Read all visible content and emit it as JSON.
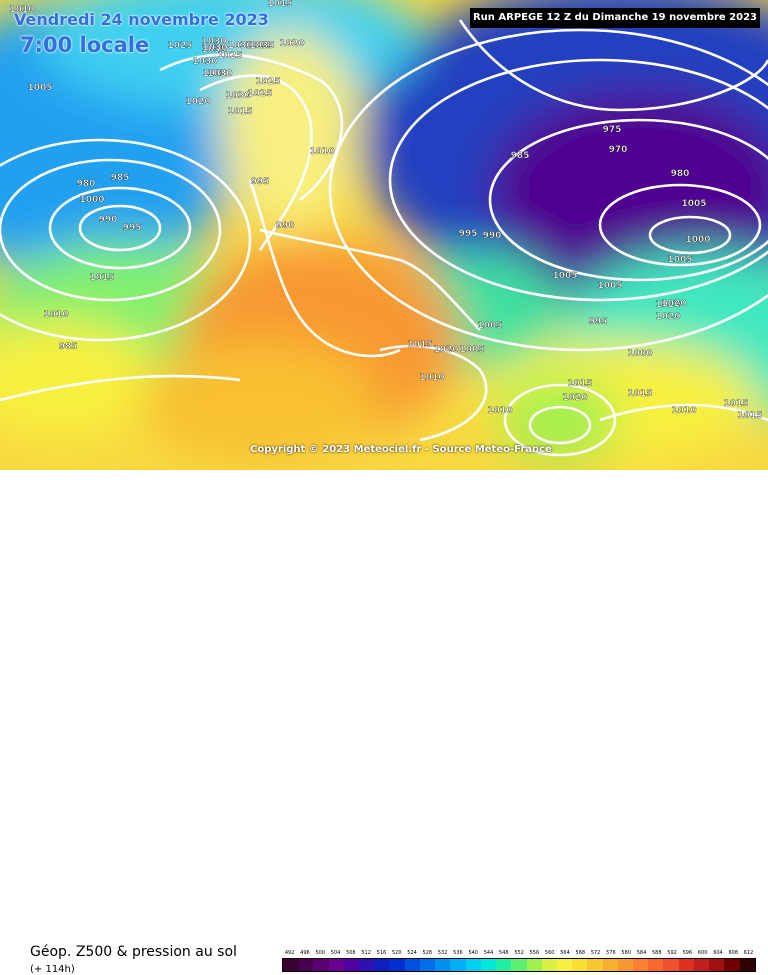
{
  "title": {
    "date": "Vendredi 24 novembre 2023",
    "time": "7:00 locale"
  },
  "run_info": "Run ARPEGE 12 Z du Dimanche 19 novembre 2023",
  "copyright": "Copyright © 2023 Meteociel.fr - Source Meteo-France",
  "footer": {
    "parameter": "Géop. Z500 & pression au sol",
    "lead_time": "(+ 114h)"
  },
  "legend": {
    "values": [
      "492",
      "496",
      "500",
      "504",
      "508",
      "512",
      "516",
      "520",
      "524",
      "528",
      "532",
      "536",
      "540",
      "544",
      "548",
      "552",
      "556",
      "560",
      "564",
      "568",
      "572",
      "576",
      "580",
      "584",
      "588",
      "592",
      "596",
      "600",
      "604",
      "608",
      "612"
    ],
    "colors": [
      "#3a0030",
      "#4a0050",
      "#5a0070",
      "#6a0090",
      "#5000a0",
      "#3010b0",
      "#1020c0",
      "#0030d0",
      "#0050e0",
      "#0070ea",
      "#0090f0",
      "#00b0f4",
      "#00d0f0",
      "#00e8d8",
      "#20f0a0",
      "#60f070",
      "#a0f050",
      "#d8f040",
      "#f8f040",
      "#f8e030",
      "#f8c830",
      "#f8b030",
      "#f89830",
      "#f88030",
      "#f86830",
      "#f05030",
      "#e03020",
      "#c02020",
      "#a01010",
      "#700000",
      "#300000"
    ]
  },
  "isobars": [
    {
      "label": "1010"
    },
    {
      "label": "1015"
    },
    {
      "label": "1005"
    },
    {
      "label": "1025"
    },
    {
      "label": "1030"
    },
    {
      "label": "1035"
    },
    {
      "label": "1020"
    },
    {
      "label": "1025"
    },
    {
      "label": "1030"
    },
    {
      "label": "1035"
    },
    {
      "label": "1030"
    },
    {
      "label": "1030"
    },
    {
      "label": "1025"
    },
    {
      "label": "1030"
    },
    {
      "label": "1030"
    },
    {
      "label": "1025"
    },
    {
      "label": "1030"
    },
    {
      "label": "1025"
    },
    {
      "label": "1020"
    },
    {
      "label": "1015"
    },
    {
      "label": "1010"
    },
    {
      "label": "995"
    },
    {
      "label": "990"
    },
    {
      "label": "985"
    },
    {
      "label": "980"
    },
    {
      "label": "1000"
    },
    {
      "label": "990"
    },
    {
      "label": "995"
    },
    {
      "label": "1015"
    },
    {
      "label": "1010"
    },
    {
      "label": "985"
    },
    {
      "label": "995"
    },
    {
      "label": "990"
    },
    {
      "label": "985"
    },
    {
      "label": "975"
    },
    {
      "label": "970"
    },
    {
      "label": "980"
    },
    {
      "label": "1005"
    },
    {
      "label": "1000"
    },
    {
      "label": "1005"
    },
    {
      "label": "1005"
    },
    {
      "label": "1005"
    },
    {
      "label": "995"
    },
    {
      "label": "1020"
    },
    {
      "label": "1020"
    },
    {
      "label": "1020"
    },
    {
      "label": "1015"
    },
    {
      "label": "1020"
    },
    {
      "label": "1005"
    },
    {
      "label": "1005"
    },
    {
      "label": "1010"
    },
    {
      "label": "1010"
    },
    {
      "label": "1015"
    },
    {
      "label": "1020"
    },
    {
      "label": "1000"
    },
    {
      "label": "1015"
    },
    {
      "label": "1010"
    },
    {
      "label": "1015"
    },
    {
      "label": "1015"
    }
  ]
}
